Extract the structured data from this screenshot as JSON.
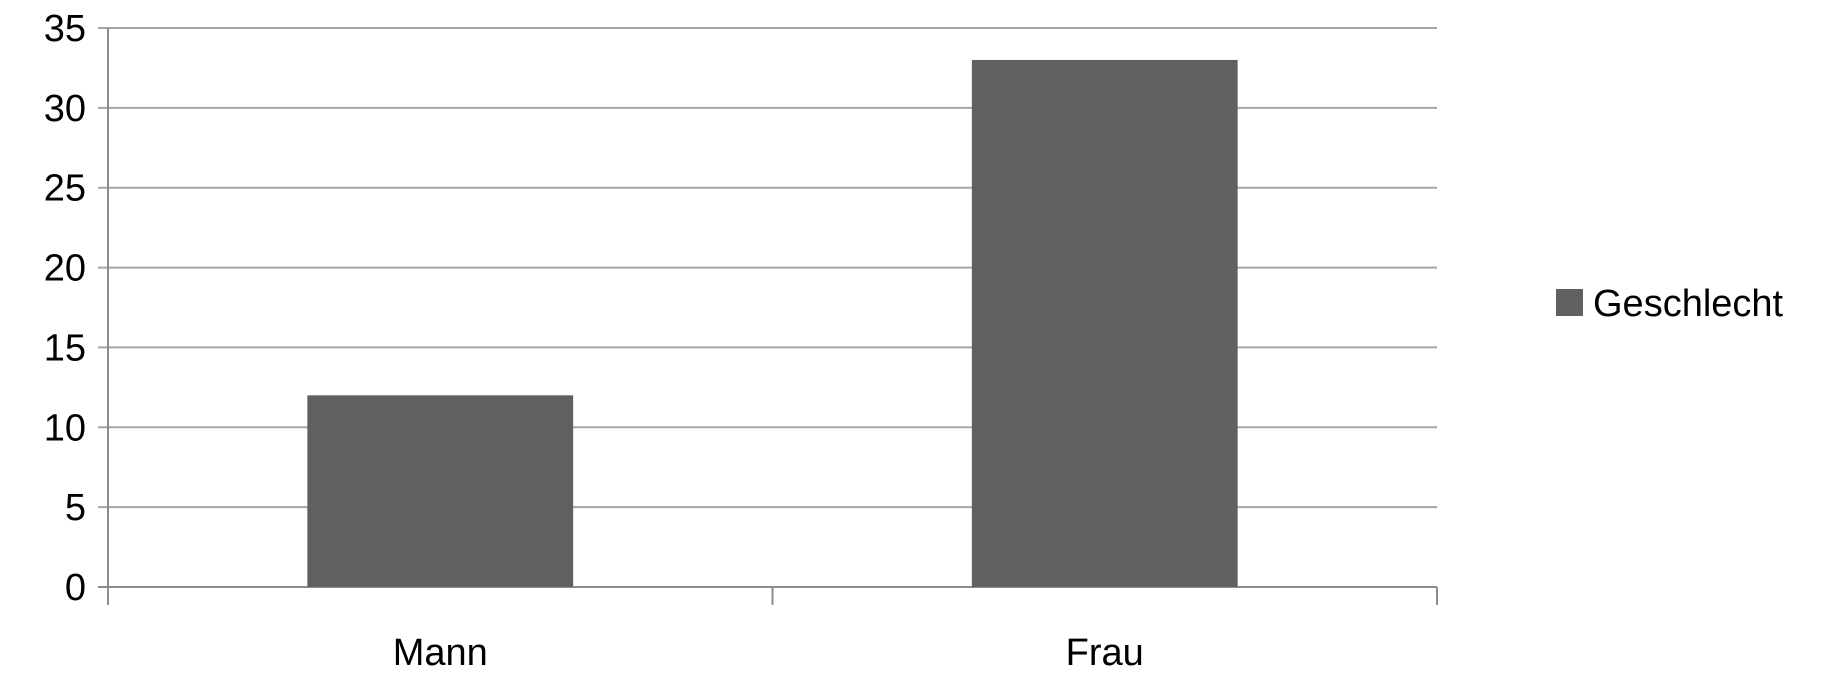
{
  "chart_data": {
    "type": "bar",
    "categories": [
      "Mann",
      "Frau"
    ],
    "series": [
      {
        "name": "Geschlecht",
        "values": [
          12,
          33
        ],
        "color": "#606060"
      }
    ],
    "title": "",
    "xlabel": "",
    "ylabel": "",
    "ylim": [
      0,
      35
    ],
    "yticks": [
      "0",
      "5",
      "10",
      "15",
      "20",
      "25",
      "30",
      "35"
    ],
    "grid": true,
    "legend_position": "right",
    "colors": {
      "bar": "#606060",
      "grid": "#a6a6a6",
      "axis": "#8c8c8c",
      "text": "#000000"
    }
  }
}
